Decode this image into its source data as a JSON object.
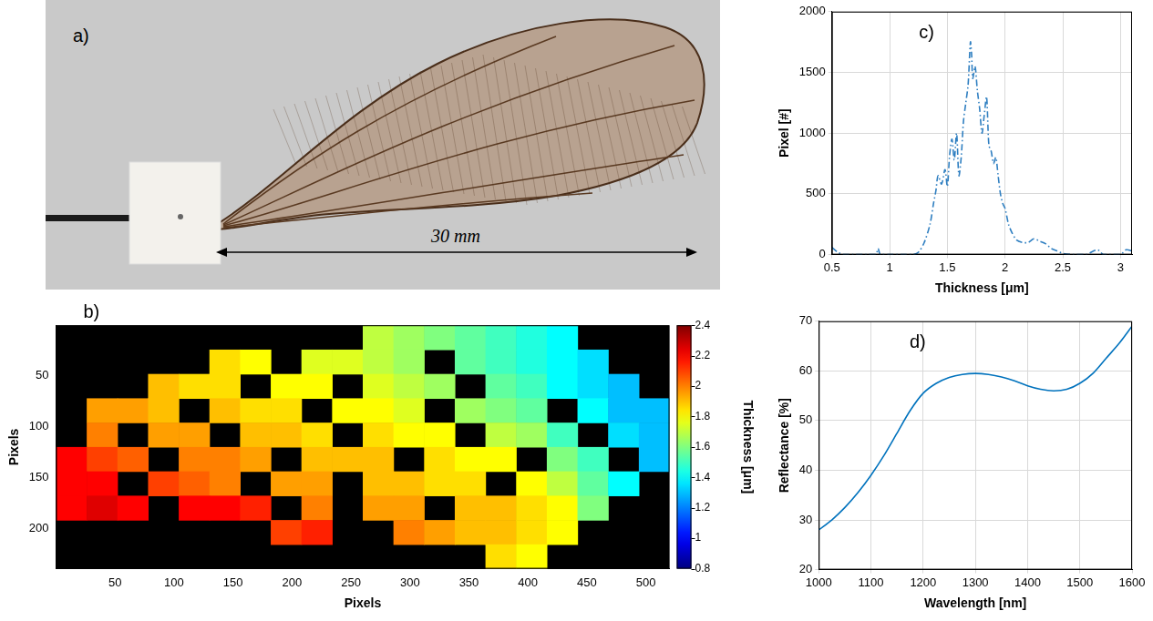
{
  "chart_data": [
    {
      "type": "image",
      "panel": "a)",
      "annotation": "30 mm"
    },
    {
      "type": "heatmap",
      "panel": "b)",
      "x_label": "Pixels",
      "y_label": "Pixels",
      "xlim": [
        0,
        520
      ],
      "xticks": [
        50,
        100,
        150,
        200,
        250,
        300,
        350,
        400,
        450,
        500
      ],
      "ylim": [
        240,
        0
      ],
      "yticks": [
        50,
        100,
        150,
        200
      ],
      "x": [
        13,
        39,
        65,
        91,
        117,
        143,
        169,
        195,
        221,
        247,
        273,
        299,
        325,
        351,
        377,
        403,
        429,
        455,
        481,
        507
      ],
      "y": [
        12,
        36,
        60,
        84,
        108,
        132,
        156,
        180,
        204,
        228
      ],
      "cells": [
        [
          null,
          null,
          null,
          null,
          null,
          null,
          null,
          null,
          null,
          null,
          1.7,
          1.65,
          1.6,
          1.55,
          1.5,
          1.45,
          1.4,
          null,
          null,
          null
        ],
        [
          null,
          null,
          null,
          null,
          null,
          1.85,
          1.8,
          null,
          1.75,
          1.75,
          1.7,
          1.65,
          null,
          1.55,
          1.5,
          1.45,
          1.4,
          1.35,
          null,
          null
        ],
        [
          null,
          null,
          null,
          1.9,
          1.85,
          1.85,
          null,
          1.8,
          1.8,
          null,
          1.75,
          1.7,
          1.65,
          null,
          1.55,
          1.5,
          1.4,
          1.35,
          1.3,
          null
        ],
        [
          null,
          1.95,
          1.95,
          1.9,
          null,
          1.9,
          1.85,
          1.85,
          null,
          1.8,
          1.8,
          1.75,
          null,
          1.65,
          1.6,
          1.55,
          null,
          1.4,
          1.3,
          1.3
        ],
        [
          null,
          2.0,
          null,
          1.95,
          1.95,
          null,
          1.9,
          1.9,
          1.85,
          null,
          1.85,
          1.8,
          1.8,
          null,
          1.7,
          1.65,
          1.5,
          null,
          1.35,
          1.3
        ],
        [
          2.2,
          2.1,
          2.05,
          null,
          2.0,
          2.0,
          1.95,
          null,
          1.9,
          1.9,
          1.9,
          null,
          1.85,
          1.8,
          1.8,
          null,
          1.6,
          1.5,
          null,
          1.3
        ],
        [
          2.2,
          2.2,
          null,
          2.1,
          2.05,
          2.0,
          null,
          1.95,
          1.95,
          null,
          1.9,
          1.9,
          1.85,
          1.85,
          null,
          1.8,
          1.7,
          1.55,
          1.4,
          null
        ],
        [
          2.2,
          2.25,
          2.2,
          null,
          2.2,
          2.2,
          2.15,
          null,
          2.0,
          null,
          1.95,
          1.95,
          null,
          1.9,
          1.9,
          1.85,
          1.8,
          1.6,
          null,
          null
        ],
        [
          null,
          null,
          null,
          null,
          null,
          null,
          null,
          2.1,
          2.15,
          null,
          null,
          2.0,
          1.95,
          1.9,
          1.9,
          1.85,
          1.8,
          null,
          null,
          null
        ],
        [
          null,
          null,
          null,
          null,
          null,
          null,
          null,
          null,
          null,
          null,
          null,
          null,
          null,
          null,
          1.85,
          1.8,
          null,
          null,
          null,
          null
        ]
      ],
      "colorbar": {
        "label": "Thickness [μm]",
        "range": [
          0.8,
          2.4
        ],
        "ticks": [
          0.8,
          1,
          1.2,
          1.4,
          1.6,
          1.8,
          2,
          2.2,
          2.4
        ]
      }
    },
    {
      "type": "line",
      "panel": "c)",
      "x_label": "Thickness [μm]",
      "y_label": "Pixel [#]",
      "xlim": [
        0.5,
        3.1
      ],
      "xticks": [
        0.5,
        1,
        1.5,
        2,
        2.5,
        3
      ],
      "ylim": [
        0,
        2000
      ],
      "yticks": [
        0,
        500,
        1000,
        1500,
        2000
      ],
      "grid": true,
      "color": "#2f7fc1",
      "line_style": "dashdot",
      "x": [
        0.5,
        0.55,
        0.6,
        0.7,
        0.8,
        0.88,
        0.9,
        0.92,
        1.0,
        1.1,
        1.2,
        1.25,
        1.3,
        1.35,
        1.38,
        1.4,
        1.42,
        1.45,
        1.48,
        1.5,
        1.52,
        1.54,
        1.56,
        1.58,
        1.6,
        1.62,
        1.64,
        1.66,
        1.68,
        1.7,
        1.71,
        1.72,
        1.74,
        1.76,
        1.78,
        1.8,
        1.82,
        1.84,
        1.86,
        1.88,
        1.9,
        1.92,
        1.94,
        1.96,
        1.98,
        2.0,
        2.03,
        2.06,
        2.1,
        2.15,
        2.2,
        2.25,
        2.3,
        2.35,
        2.4,
        2.45,
        2.5,
        2.6,
        2.7,
        2.8,
        2.85,
        2.9,
        3.0,
        3.05,
        3.1
      ],
      "values": [
        60,
        20,
        0,
        0,
        0,
        0,
        50,
        0,
        0,
        0,
        0,
        20,
        100,
        250,
        420,
        520,
        650,
        580,
        700,
        560,
        820,
        950,
        780,
        1000,
        650,
        800,
        1100,
        1250,
        1400,
        1750,
        1650,
        1450,
        1550,
        1350,
        1200,
        1000,
        1150,
        1300,
        900,
        850,
        750,
        800,
        650,
        500,
        420,
        380,
        250,
        180,
        120,
        100,
        100,
        130,
        110,
        90,
        50,
        30,
        10,
        0,
        0,
        40,
        0,
        0,
        0,
        40,
        30
      ]
    },
    {
      "type": "line",
      "panel": "d)",
      "x_label": "Wavelength [nm]",
      "y_label": "Reflectance [%]",
      "xlim": [
        1000,
        1600
      ],
      "xticks": [
        1000,
        1100,
        1200,
        1300,
        1400,
        1500,
        1600
      ],
      "ylim": [
        20,
        70
      ],
      "yticks": [
        20,
        30,
        40,
        50,
        60,
        70
      ],
      "grid": true,
      "color": "#0072bd",
      "line_style": "solid",
      "x": [
        1000,
        1025,
        1050,
        1075,
        1100,
        1125,
        1150,
        1175,
        1200,
        1225,
        1250,
        1275,
        1300,
        1325,
        1350,
        1375,
        1400,
        1425,
        1450,
        1475,
        1500,
        1525,
        1550,
        1575,
        1600
      ],
      "values": [
        28,
        30,
        32.5,
        35.5,
        39,
        43,
        47.5,
        52,
        55.5,
        57.5,
        58.7,
        59.3,
        59.5,
        59.3,
        58.8,
        58,
        57,
        56.3,
        56,
        56.3,
        57.5,
        59.5,
        62.5,
        65.5,
        69
      ]
    }
  ]
}
